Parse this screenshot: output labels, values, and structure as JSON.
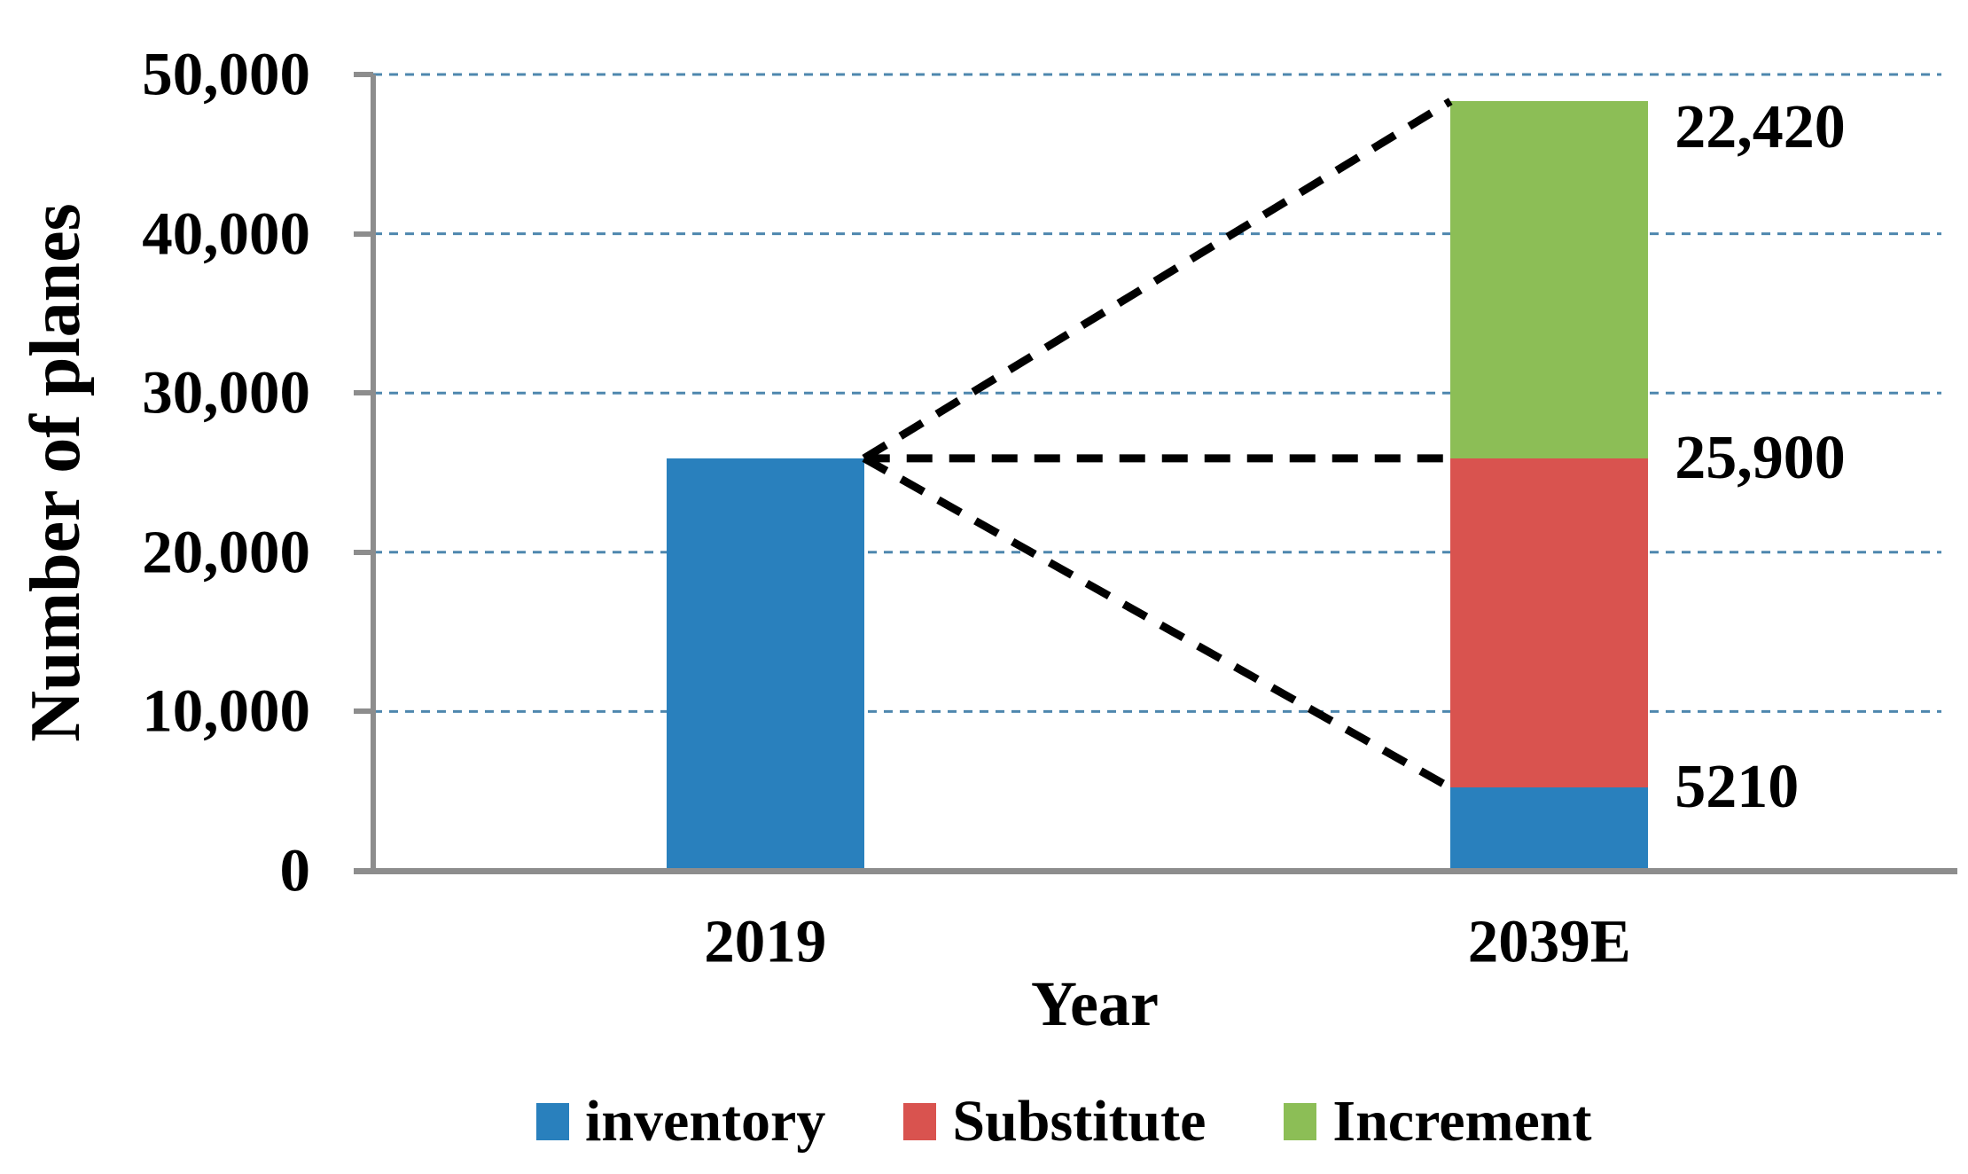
{
  "chart_data": {
    "type": "bar",
    "stacked": true,
    "title": "",
    "xlabel": "Year",
    "ylabel": "Number of planes",
    "categories": [
      "2019",
      "2039E"
    ],
    "series": [
      {
        "name": "inventory",
        "color": "#2980bd",
        "values": [
          25900,
          5210
        ]
      },
      {
        "name": "Substitute",
        "color": "#d9534f",
        "values": [
          0,
          20690
        ]
      },
      {
        "name": "Increment",
        "color": "#8cbe56",
        "values": [
          0,
          22420
        ]
      }
    ],
    "category_totals": [
      25900,
      48320
    ],
    "ylim": [
      0,
      50000
    ],
    "yticks": [
      {
        "value": 0,
        "label": "0"
      },
      {
        "value": 10000,
        "label": "10,000"
      },
      {
        "value": 20000,
        "label": "20,000"
      },
      {
        "value": 30000,
        "label": "30,000"
      },
      {
        "value": 40000,
        "label": "40,000"
      },
      {
        "value": 50000,
        "label": "50,000"
      }
    ],
    "grid": "horizontal-dashed",
    "legend_position": "bottom",
    "legend": [
      "inventory",
      "Substitute",
      "Increment"
    ],
    "annotations": [
      {
        "text": "22,420",
        "anchor_value": 48320
      },
      {
        "text": "25,900",
        "anchor_value": 25900
      },
      {
        "text": "5210",
        "anchor_value": 5210
      }
    ],
    "connectors": [
      {
        "from_category": 0,
        "from_value": 25900,
        "to_category": 1,
        "to_value": 48320
      },
      {
        "from_category": 0,
        "from_value": 25900,
        "to_category": 1,
        "to_value": 25900
      },
      {
        "from_category": 0,
        "from_value": 25900,
        "to_category": 1,
        "to_value": 5210
      }
    ],
    "colors": {
      "axis": "#8d8d8d",
      "gridline": "#4e87ae",
      "connector": "#000000",
      "text": "#000000"
    }
  }
}
